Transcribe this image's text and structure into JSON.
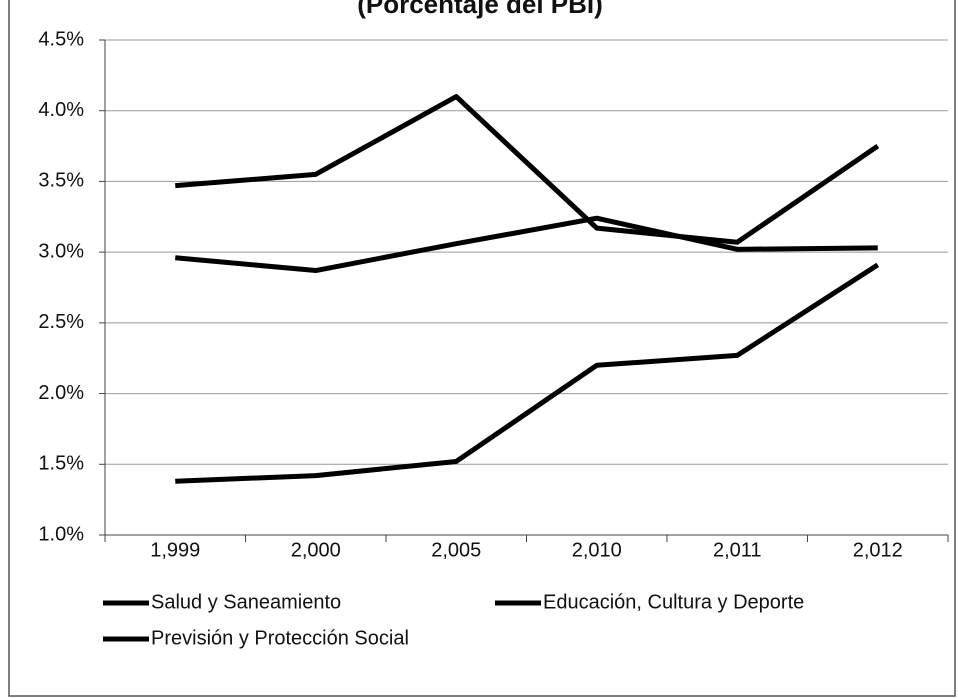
{
  "chart_data": {
    "type": "line",
    "title": "(Porcentaje del PBI)",
    "categories": [
      "1,999",
      "2,000",
      "2,005",
      "2,010",
      "2,011",
      "2,012"
    ],
    "series": [
      {
        "name": "Salud y Saneamiento",
        "color": "#000000",
        "values": [
          1.38,
          1.42,
          1.52,
          2.2,
          2.27,
          2.91
        ]
      },
      {
        "name": "Educación, Cultura y Deporte",
        "color": "#000000",
        "values": [
          3.47,
          3.55,
          4.1,
          3.17,
          3.07,
          3.75
        ]
      },
      {
        "name": "Previsión y Protección Social",
        "color": "#000000",
        "values": [
          2.96,
          2.87,
          3.06,
          3.24,
          3.02,
          3.03
        ]
      }
    ],
    "ylim": [
      1.0,
      4.5
    ],
    "yticks": [
      {
        "value": 1.0,
        "label": "1.0%"
      },
      {
        "value": 1.5,
        "label": "1.5%"
      },
      {
        "value": 2.0,
        "label": "2.0%"
      },
      {
        "value": 2.5,
        "label": "2.5%"
      },
      {
        "value": 3.0,
        "label": "3.0%"
      },
      {
        "value": 3.5,
        "label": "3.5%"
      },
      {
        "value": 4.0,
        "label": "4.0%"
      },
      {
        "value": 4.5,
        "label": "4.5%"
      }
    ],
    "grid": true
  }
}
